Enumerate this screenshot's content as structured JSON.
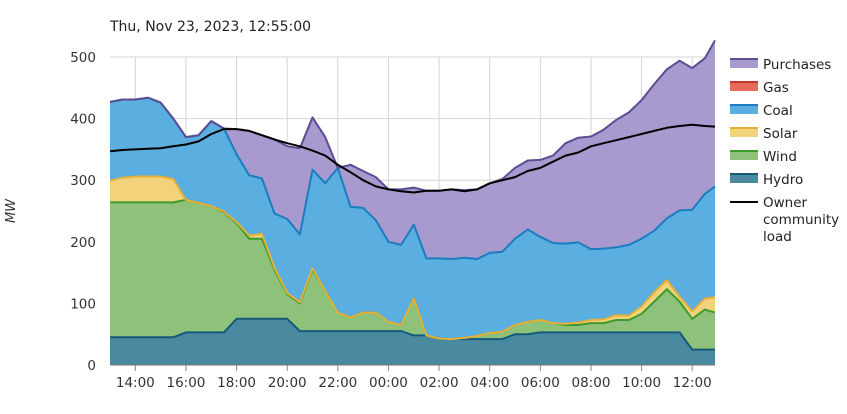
{
  "chart_data": {
    "type": "area",
    "title": "Thu, Nov 23, 2023, 12:55:00",
    "ylabel": "MW",
    "xlabel": "",
    "ylim": [
      0,
      500
    ],
    "yticks": [
      0,
      100,
      200,
      300,
      400,
      500
    ],
    "x_range_hours": [
      13.0,
      36.9
    ],
    "xticks": [
      {
        "hour": 14,
        "label": "14:00"
      },
      {
        "hour": 16,
        "label": "16:00"
      },
      {
        "hour": 18,
        "label": "18:00"
      },
      {
        "hour": 20,
        "label": "20:00"
      },
      {
        "hour": 22,
        "label": "22:00"
      },
      {
        "hour": 24,
        "label": "00:00"
      },
      {
        "hour": 26,
        "label": "02:00"
      },
      {
        "hour": 28,
        "label": "04:00"
      },
      {
        "hour": 30,
        "label": "06:00"
      },
      {
        "hour": 32,
        "label": "08:00"
      },
      {
        "hour": 34,
        "label": "10:00"
      },
      {
        "hour": 36,
        "label": "12:00"
      }
    ],
    "grid": true,
    "legend_position": "right",
    "stack_order": [
      "Hydro",
      "Wind",
      "Solar",
      "Coal",
      "Gas",
      "Purchases"
    ],
    "x": [
      13.0,
      13.5,
      14.0,
      14.5,
      15.0,
      15.5,
      16.0,
      16.5,
      17.0,
      17.5,
      18.0,
      18.5,
      19.0,
      19.5,
      20.0,
      20.5,
      21.0,
      21.5,
      22.0,
      22.5,
      23.0,
      23.5,
      24.0,
      24.5,
      25.0,
      25.5,
      26.0,
      26.5,
      27.0,
      27.5,
      28.0,
      28.5,
      29.0,
      29.5,
      30.0,
      30.5,
      31.0,
      31.5,
      32.0,
      32.5,
      33.0,
      33.5,
      34.0,
      34.5,
      35.0,
      35.5,
      36.0,
      36.5,
      36.9
    ],
    "series": [
      {
        "name": "Hydro",
        "color": "#4a8aa0",
        "line": "#155a78",
        "values": [
          45,
          45,
          45,
          45,
          45,
          45,
          53,
          53,
          53,
          53,
          75,
          75,
          75,
          75,
          75,
          55,
          55,
          55,
          55,
          55,
          55,
          55,
          55,
          55,
          48,
          48,
          43,
          42,
          42,
          42,
          42,
          42,
          50,
          50,
          53,
          53,
          53,
          53,
          53,
          53,
          53,
          53,
          53,
          53,
          53,
          53,
          25,
          25,
          25
        ]
      },
      {
        "name": "Wind",
        "color": "#8ec27a",
        "line": "#3e9a2e",
        "values": [
          219,
          219,
          219,
          219,
          219,
          219,
          215,
          210,
          205,
          195,
          155,
          130,
          130,
          80,
          40,
          45,
          100,
          65,
          30,
          22,
          30,
          30,
          15,
          10,
          60,
          0,
          0,
          0,
          2,
          5,
          10,
          12,
          15,
          20,
          20,
          15,
          12,
          12,
          15,
          15,
          20,
          20,
          30,
          50,
          70,
          50,
          50,
          65,
          60
        ]
      },
      {
        "name": "Solar",
        "color": "#f2d27a",
        "line": "#e6b038",
        "values": [
          35,
          40,
          42,
          42,
          42,
          38,
          0,
          0,
          0,
          1,
          2,
          5,
          8,
          3,
          2,
          2,
          2,
          0,
          0,
          0,
          0,
          0,
          0,
          0,
          0,
          0,
          0,
          0,
          0,
          0,
          0,
          0,
          0,
          0,
          0,
          0,
          2,
          4,
          5,
          6,
          8,
          7,
          12,
          15,
          15,
          8,
          12,
          18,
          25
        ]
      },
      {
        "name": "Coal",
        "color": "#5aaee0",
        "line": "#1a7dc0",
        "values": [
          128,
          127,
          125,
          128,
          120,
          98,
          102,
          110,
          138,
          135,
          110,
          98,
          90,
          88,
          120,
          110,
          160,
          175,
          235,
          180,
          170,
          150,
          130,
          130,
          120,
          125,
          130,
          130,
          130,
          125,
          130,
          130,
          140,
          150,
          135,
          130,
          130,
          130,
          115,
          115,
          110,
          115,
          110,
          100,
          100,
          140,
          165,
          170,
          180
        ]
      },
      {
        "name": "Gas",
        "color": "#e56a5a",
        "line": "#c0392b",
        "values": [
          0,
          0,
          0,
          0,
          0,
          0,
          0,
          0,
          0,
          0,
          0,
          0,
          0,
          0,
          0,
          0,
          0,
          0,
          0,
          0,
          0,
          0,
          0,
          0,
          0,
          0,
          0,
          0,
          0,
          0,
          0,
          0,
          0,
          0,
          0,
          0,
          0,
          0,
          0,
          0,
          0,
          0,
          0,
          0,
          0,
          0,
          0,
          0,
          0
        ]
      },
      {
        "name": "Purchases",
        "color": "#a899cf",
        "line": "#5a4d94",
        "values": [
          0,
          0,
          0,
          0,
          0,
          0,
          0,
          0,
          0,
          0,
          41,
          72,
          70,
          120,
          118,
          140,
          85,
          75,
          0,
          68,
          60,
          70,
          85,
          90,
          60,
          110,
          110,
          113,
          110,
          113,
          113,
          118,
          115,
          112,
          125,
          142,
          163,
          170,
          183,
          193,
          207,
          215,
          225,
          238,
          242,
          243,
          230,
          220,
          237
        ]
      }
    ],
    "community_load": {
      "name": "Owner community load",
      "color": "#000000",
      "x": [
        13.0,
        13.5,
        14.0,
        14.5,
        15.0,
        15.5,
        16.0,
        16.5,
        17.0,
        17.5,
        18.0,
        18.5,
        19.0,
        19.5,
        20.0,
        20.5,
        21.0,
        21.5,
        22.0,
        22.5,
        23.0,
        23.5,
        24.0,
        24.5,
        25.0,
        25.5,
        26.0,
        26.5,
        27.0,
        27.5,
        28.0,
        28.5,
        29.0,
        29.5,
        30.0,
        30.5,
        31.0,
        31.5,
        32.0,
        32.5,
        33.0,
        33.5,
        34.0,
        34.5,
        35.0,
        35.5,
        36.0,
        36.5,
        36.9
      ],
      "values": [
        347,
        349,
        350,
        351,
        352,
        355,
        358,
        363,
        375,
        383,
        383,
        380,
        373,
        366,
        360,
        355,
        348,
        340,
        325,
        313,
        300,
        290,
        285,
        282,
        280,
        283,
        283,
        285,
        282,
        285,
        295,
        300,
        305,
        315,
        320,
        330,
        340,
        345,
        355,
        360,
        365,
        370,
        375,
        380,
        385,
        388,
        390,
        388,
        387
      ]
    },
    "legend": [
      {
        "label": "Purchases",
        "swatch": "area",
        "color": "#a899cf",
        "line": "#5a4d94"
      },
      {
        "label": "Gas",
        "swatch": "area",
        "color": "#e56a5a",
        "line": "#c0392b"
      },
      {
        "label": "Coal",
        "swatch": "area",
        "color": "#5aaee0",
        "line": "#1a7dc0"
      },
      {
        "label": "Solar",
        "swatch": "area",
        "color": "#f2d27a",
        "line": "#e6b038"
      },
      {
        "label": "Wind",
        "swatch": "area",
        "color": "#8ec27a",
        "line": "#3e9a2e"
      },
      {
        "label": "Hydro",
        "swatch": "area",
        "color": "#4a8aa0",
        "line": "#155a78"
      },
      {
        "label": "Owner community load",
        "swatch": "line",
        "color": "#000000",
        "line": "#000000",
        "label_lines": [
          "Owner",
          "community",
          "load"
        ]
      }
    ]
  }
}
